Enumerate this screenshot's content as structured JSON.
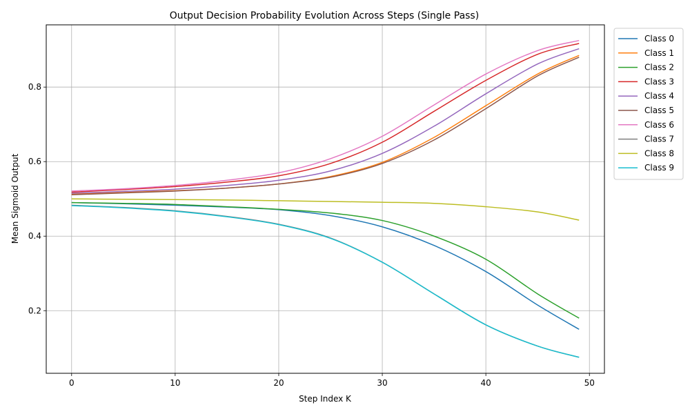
{
  "chart_data": {
    "type": "line",
    "title": "Output Decision Probability Evolution Across Steps (Single Pass)",
    "xlabel": "Step Index K",
    "ylabel": "Mean Sigmoid Output",
    "xlim": [
      -2.45,
      51.45
    ],
    "ylim": [
      0.032,
      0.967
    ],
    "xticks": [
      0,
      10,
      20,
      30,
      40,
      50
    ],
    "yticks": [
      0.2,
      0.4,
      0.6,
      0.8
    ],
    "xtick_labels": [
      "0",
      "10",
      "20",
      "30",
      "40",
      "50"
    ],
    "ytick_labels": [
      "0.2",
      "0.4",
      "0.6",
      "0.8"
    ],
    "grid": true,
    "legend_position": "outside-top-right",
    "x": [
      0,
      5,
      10,
      15,
      20,
      25,
      30,
      35,
      40,
      45,
      49
    ],
    "series": [
      {
        "name": "Class 0",
        "color": "#1f77b4",
        "values": [
          0.49,
          0.487,
          0.483,
          0.478,
          0.471,
          0.455,
          0.425,
          0.375,
          0.305,
          0.215,
          0.15
        ]
      },
      {
        "name": "Class 1",
        "color": "#ff7f0e",
        "values": [
          0.513,
          0.517,
          0.522,
          0.529,
          0.54,
          0.56,
          0.598,
          0.665,
          0.75,
          0.835,
          0.885
        ]
      },
      {
        "name": "Class 2",
        "color": "#2ca02c",
        "values": [
          0.49,
          0.488,
          0.485,
          0.479,
          0.472,
          0.462,
          0.442,
          0.4,
          0.338,
          0.245,
          0.18
        ]
      },
      {
        "name": "Class 3",
        "color": "#d62728",
        "values": [
          0.518,
          0.525,
          0.533,
          0.545,
          0.562,
          0.595,
          0.652,
          0.735,
          0.818,
          0.888,
          0.917
        ]
      },
      {
        "name": "Class 4",
        "color": "#9467bd",
        "values": [
          0.515,
          0.52,
          0.526,
          0.536,
          0.55,
          0.575,
          0.622,
          0.695,
          0.782,
          0.862,
          0.903
        ]
      },
      {
        "name": "Class 5",
        "color": "#8c564b",
        "values": [
          0.511,
          0.516,
          0.521,
          0.529,
          0.54,
          0.558,
          0.595,
          0.658,
          0.742,
          0.83,
          0.88
        ]
      },
      {
        "name": "Class 6",
        "color": "#e377c2",
        "values": [
          0.521,
          0.527,
          0.536,
          0.55,
          0.57,
          0.608,
          0.668,
          0.752,
          0.835,
          0.898,
          0.925
        ]
      },
      {
        "name": "Class 7",
        "color": "#7f7f7f",
        "values": [
          0.483,
          0.477,
          0.468,
          0.453,
          0.432,
          0.395,
          0.33,
          0.245,
          0.162,
          0.105,
          0.075
        ]
      },
      {
        "name": "Class 8",
        "color": "#bcbd22",
        "values": [
          0.5,
          0.499,
          0.498,
          0.497,
          0.495,
          0.493,
          0.491,
          0.488,
          0.479,
          0.465,
          0.443
        ]
      },
      {
        "name": "Class 9",
        "color": "#17becf",
        "values": [
          0.482,
          0.476,
          0.467,
          0.452,
          0.431,
          0.394,
          0.33,
          0.245,
          0.162,
          0.105,
          0.075
        ]
      }
    ]
  }
}
